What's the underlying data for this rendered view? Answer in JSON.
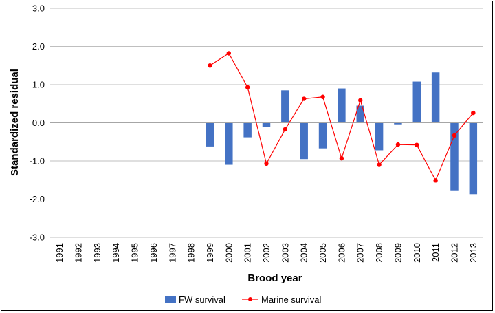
{
  "chart_data": {
    "type": "bar",
    "xlabel": "Brood year",
    "ylabel": "Standardized residual",
    "ylim": [
      -3.0,
      3.0
    ],
    "yticks": [
      "3.0",
      "2.0",
      "1.0",
      "0.0",
      "-1.0",
      "-2.0",
      "-3.0"
    ],
    "ytick_values": [
      3,
      2,
      1,
      0,
      -1,
      -2,
      -3
    ],
    "categories": [
      "1991",
      "1992",
      "1993",
      "1994",
      "1995",
      "1996",
      "1997",
      "1998",
      "1999",
      "2000",
      "2001",
      "2002",
      "2003",
      "2004",
      "2005",
      "2006",
      "2007",
      "2008",
      "2009",
      "2010",
      "2011",
      "2012",
      "2013"
    ],
    "grid": true,
    "legend_position": "bottom",
    "series": [
      {
        "name": "FW survival",
        "type": "bar",
        "color": "#4472c4",
        "values": [
          null,
          null,
          null,
          null,
          null,
          null,
          null,
          null,
          -0.62,
          -1.1,
          -0.38,
          -0.11,
          0.85,
          -0.95,
          -0.67,
          0.9,
          0.45,
          -0.72,
          -0.04,
          1.08,
          1.32,
          -1.77,
          -1.87
        ]
      },
      {
        "name": "Marine survival",
        "type": "line",
        "color": "#ff0000",
        "values": [
          null,
          null,
          null,
          null,
          null,
          null,
          null,
          null,
          1.5,
          1.82,
          0.93,
          -1.07,
          -0.17,
          0.63,
          0.68,
          -0.93,
          0.59,
          -1.1,
          -0.57,
          -0.58,
          -1.51,
          -0.33,
          0.26
        ]
      }
    ]
  }
}
